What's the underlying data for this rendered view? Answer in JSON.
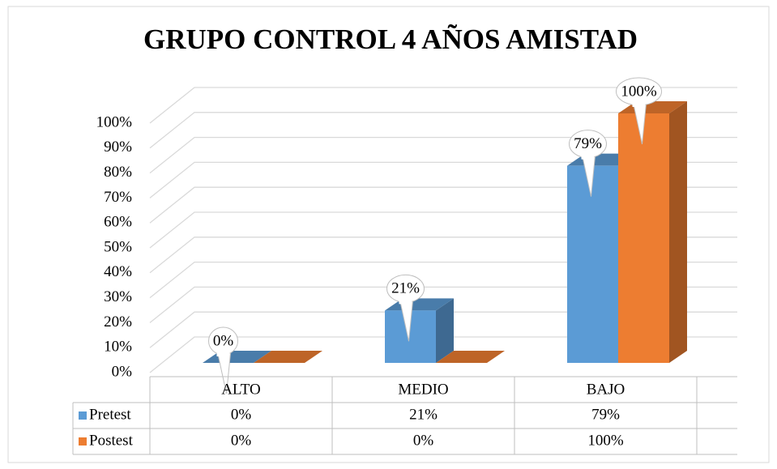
{
  "chart_data": {
    "type": "bar3d",
    "title": "GRUPO CONTROL 4 AÑOS AMISTAD",
    "categories": [
      "ALTO",
      "MEDIO",
      "BAJO"
    ],
    "series": [
      {
        "name": "Pretest",
        "color": "#5b9bd5",
        "values": [
          0,
          21,
          79
        ],
        "value_labels": [
          "0%",
          "21%",
          "79%"
        ]
      },
      {
        "name": "Postest",
        "color": "#ed7d31",
        "values": [
          0,
          0,
          100
        ],
        "value_labels": [
          "0%",
          "0%",
          "100%"
        ]
      }
    ],
    "ylim": [
      0,
      100
    ],
    "yticks": [
      {
        "value": 0,
        "label": "0%"
      },
      {
        "value": 10,
        "label": "10%"
      },
      {
        "value": 20,
        "label": "20%"
      },
      {
        "value": 30,
        "label": "30%"
      },
      {
        "value": 40,
        "label": "40%"
      },
      {
        "value": 50,
        "label": "50%"
      },
      {
        "value": 60,
        "label": "60%"
      },
      {
        "value": 70,
        "label": "70%"
      },
      {
        "value": 80,
        "label": "80%"
      },
      {
        "value": 90,
        "label": "90%"
      },
      {
        "value": 100,
        "label": "100%"
      }
    ],
    "grid": true,
    "legend": "data-table"
  }
}
